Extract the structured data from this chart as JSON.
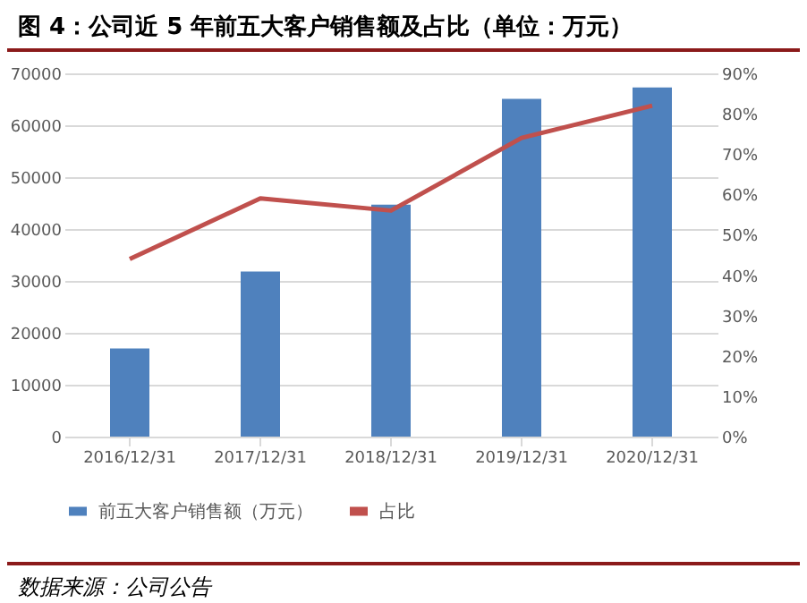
{
  "chart_data": {
    "type": "bar",
    "title": "图 4：公司近 5 年前五大客户销售额及占比（单位：万元）",
    "categories": [
      "2016/12/31",
      "2017/12/31",
      "2018/12/31",
      "2019/12/31",
      "2020/12/31"
    ],
    "series": [
      {
        "name": "前五大客户销售额（万元）",
        "color": "#4f81bd",
        "values": [
          17000,
          31800,
          44700,
          65100,
          67300
        ]
      },
      {
        "name": "占比",
        "type": "line",
        "axis": "y2",
        "color": "#c0504d",
        "values": [
          44,
          59,
          56,
          74,
          82
        ]
      }
    ],
    "ylim": [
      0,
      70000
    ],
    "yticks": [
      0,
      10000,
      20000,
      30000,
      40000,
      50000,
      60000,
      70000
    ],
    "y2lim": [
      0,
      90
    ],
    "y2ticks": [
      {
        "value": 0,
        "label": "0%"
      },
      {
        "value": 10,
        "label": "10%"
      },
      {
        "value": 20,
        "label": "20%"
      },
      {
        "value": 30,
        "label": "30%"
      },
      {
        "value": 40,
        "label": "40%"
      },
      {
        "value": 50,
        "label": "50%"
      },
      {
        "value": 60,
        "label": "60%"
      },
      {
        "value": 70,
        "label": "70%"
      },
      {
        "value": 80,
        "label": "80%"
      },
      {
        "value": 90,
        "label": "90%"
      }
    ],
    "grid": "y",
    "legend": "bottom",
    "marker": "none",
    "line_style": "solid",
    "annotations": [
      "数据来源：公司公告"
    ]
  }
}
